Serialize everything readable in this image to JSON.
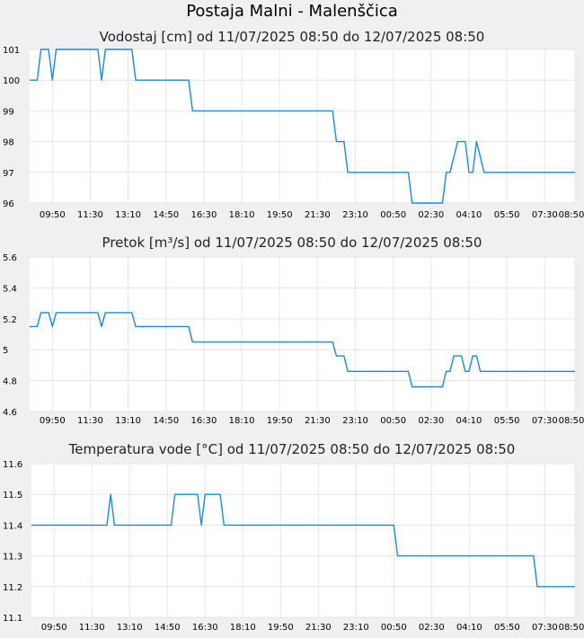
{
  "page": {
    "title": "Postaja Malni - Malenščica"
  },
  "colors": {
    "series": "#1a8ad4",
    "grid": "#e6e6e6",
    "background": "#f0f0f0",
    "plot": "#ffffff"
  },
  "chart_data": [
    {
      "type": "line",
      "title": "Vodostaj [cm] od 11/07/2025 08:50 do 12/07/2025 08:50",
      "xlabel": "",
      "ylabel": "",
      "xlim": [
        0,
        1440
      ],
      "ylim": [
        96,
        101
      ],
      "grid": true,
      "x_ticks": [
        {
          "x": 60,
          "label": "09:50"
        },
        {
          "x": 160,
          "label": "11:30"
        },
        {
          "x": 260,
          "label": "13:10"
        },
        {
          "x": 360,
          "label": "14:50"
        },
        {
          "x": 460,
          "label": "16:30"
        },
        {
          "x": 560,
          "label": "18:10"
        },
        {
          "x": 660,
          "label": "19:50"
        },
        {
          "x": 760,
          "label": "21:30"
        },
        {
          "x": 860,
          "label": "23:10"
        },
        {
          "x": 960,
          "label": "00:50"
        },
        {
          "x": 1060,
          "label": "02:30"
        },
        {
          "x": 1160,
          "label": "04:10"
        },
        {
          "x": 1260,
          "label": "05:50"
        },
        {
          "x": 1360,
          "label": "07:30"
        },
        {
          "x": 1440,
          "label": "08:50"
        }
      ],
      "y_ticks": [
        {
          "y": 96,
          "label": "96"
        },
        {
          "y": 97,
          "label": "97"
        },
        {
          "y": 98,
          "label": "98"
        },
        {
          "y": 99,
          "label": "99"
        },
        {
          "y": 100,
          "label": "100"
        },
        {
          "y": 101,
          "label": "101"
        }
      ],
      "series": [
        {
          "x": [
            0,
            20,
            30,
            50,
            60,
            70,
            180,
            190,
            200,
            270,
            280,
            420,
            430,
            800,
            810,
            830,
            840,
            1000,
            1010,
            1090,
            1100,
            1110,
            1130,
            1150,
            1160,
            1170,
            1180,
            1200,
            1440
          ],
          "y": [
            100,
            100,
            101,
            101,
            100,
            101,
            101,
            100,
            101,
            101,
            100,
            100,
            99,
            99,
            98,
            98,
            97,
            97,
            96,
            96,
            97,
            97,
            98,
            98,
            97,
            97,
            98,
            97,
            97
          ]
        }
      ]
    },
    {
      "type": "line",
      "title": "Pretok [m³/s] od 11/07/2025 08:50 do 12/07/2025 08:50",
      "xlabel": "",
      "ylabel": "",
      "xlim": [
        0,
        1440
      ],
      "ylim": [
        4.6,
        5.6
      ],
      "grid": true,
      "x_ticks": [
        {
          "x": 60,
          "label": "09:50"
        },
        {
          "x": 160,
          "label": "11:30"
        },
        {
          "x": 260,
          "label": "13:10"
        },
        {
          "x": 360,
          "label": "14:50"
        },
        {
          "x": 460,
          "label": "16:30"
        },
        {
          "x": 560,
          "label": "18:10"
        },
        {
          "x": 660,
          "label": "19:50"
        },
        {
          "x": 760,
          "label": "21:30"
        },
        {
          "x": 860,
          "label": "23:10"
        },
        {
          "x": 960,
          "label": "00:50"
        },
        {
          "x": 1060,
          "label": "02:30"
        },
        {
          "x": 1160,
          "label": "04:10"
        },
        {
          "x": 1260,
          "label": "05:50"
        },
        {
          "x": 1360,
          "label": "07:30"
        },
        {
          "x": 1440,
          "label": "08:50"
        }
      ],
      "y_ticks": [
        {
          "y": 4.6,
          "label": "4.6"
        },
        {
          "y": 4.8,
          "label": "4.8"
        },
        {
          "y": 5.0,
          "label": "5"
        },
        {
          "y": 5.2,
          "label": "5.2"
        },
        {
          "y": 5.4,
          "label": "5.4"
        },
        {
          "y": 5.6,
          "label": "5.6"
        }
      ],
      "series": [
        {
          "x": [
            0,
            20,
            30,
            50,
            60,
            70,
            180,
            190,
            200,
            270,
            280,
            420,
            430,
            800,
            810,
            830,
            840,
            1000,
            1010,
            1090,
            1100,
            1110,
            1120,
            1140,
            1150,
            1160,
            1170,
            1180,
            1190,
            1440
          ],
          "y": [
            5.15,
            5.15,
            5.24,
            5.24,
            5.15,
            5.24,
            5.24,
            5.15,
            5.24,
            5.24,
            5.15,
            5.15,
            5.05,
            5.05,
            4.96,
            4.96,
            4.86,
            4.86,
            4.76,
            4.76,
            4.86,
            4.86,
            4.96,
            4.96,
            4.86,
            4.86,
            4.96,
            4.96,
            4.86,
            4.86
          ]
        }
      ]
    },
    {
      "type": "line",
      "title": "Temperatura vode [°C] od 11/07/2025 08:50 do 12/07/2025 08:50",
      "xlabel": "",
      "ylabel": "",
      "xlim": [
        0,
        1440
      ],
      "ylim": [
        11.1,
        11.6
      ],
      "grid": true,
      "x_ticks": [
        {
          "x": 60,
          "label": "09:50"
        },
        {
          "x": 160,
          "label": "11:30"
        },
        {
          "x": 260,
          "label": "13:10"
        },
        {
          "x": 360,
          "label": "14:50"
        },
        {
          "x": 460,
          "label": "16:30"
        },
        {
          "x": 560,
          "label": "18:10"
        },
        {
          "x": 660,
          "label": "19:50"
        },
        {
          "x": 760,
          "label": "21:30"
        },
        {
          "x": 860,
          "label": "23:10"
        },
        {
          "x": 960,
          "label": "00:50"
        },
        {
          "x": 1060,
          "label": "02:30"
        },
        {
          "x": 1160,
          "label": "04:10"
        },
        {
          "x": 1260,
          "label": "05:50"
        },
        {
          "x": 1360,
          "label": "07:30"
        },
        {
          "x": 1440,
          "label": "08:50"
        }
      ],
      "y_ticks": [
        {
          "y": 11.1,
          "label": "11.1"
        },
        {
          "y": 11.2,
          "label": "11.2"
        },
        {
          "y": 11.3,
          "label": "11.3"
        },
        {
          "y": 11.4,
          "label": "11.4"
        },
        {
          "y": 11.5,
          "label": "11.5"
        },
        {
          "y": 11.6,
          "label": "11.6"
        }
      ],
      "series": [
        {
          "x": [
            0,
            200,
            210,
            220,
            370,
            380,
            440,
            450,
            460,
            500,
            510,
            960,
            970,
            1330,
            1340,
            1440
          ],
          "y": [
            11.4,
            11.4,
            11.5,
            11.4,
            11.4,
            11.5,
            11.5,
            11.4,
            11.5,
            11.5,
            11.4,
            11.4,
            11.3,
            11.3,
            11.2,
            11.2
          ]
        }
      ]
    }
  ]
}
